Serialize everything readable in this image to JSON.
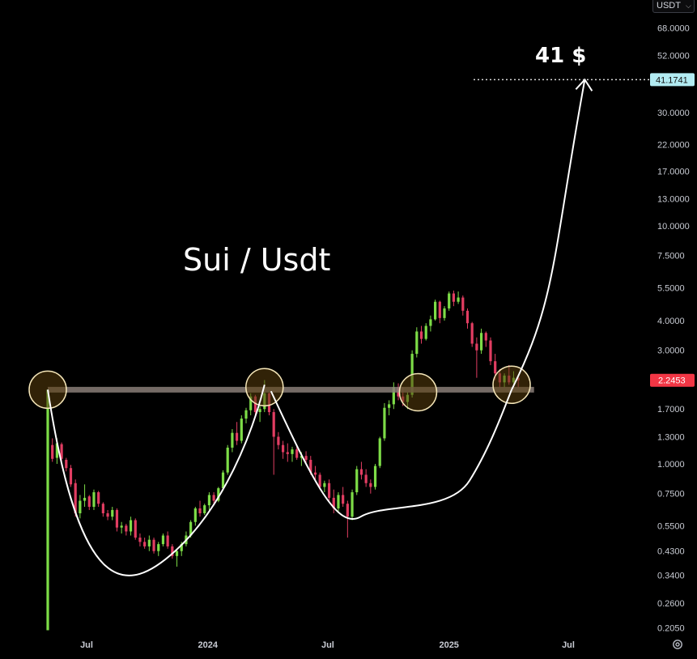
{
  "currency_selector": {
    "label": "USDT",
    "chevron_icon": "chevron-down-icon"
  },
  "settings_icon": "gear-icon",
  "chart_data": {
    "type": "candlestick",
    "title": "Sui / Usdt",
    "scale": "log",
    "ylim": [
      0.19,
      72
    ],
    "xlim": [
      "2023-05-03",
      "2025-07-28"
    ],
    "y_ticks": [
      "68.0000",
      "52.0000",
      "41.1741",
      "30.0000",
      "22.0000",
      "17.0000",
      "13.0000",
      "10.0000",
      "7.5000",
      "5.5000",
      "4.0000",
      "3.0000",
      "2.2453",
      "1.7000",
      "1.3000",
      "1.0000",
      "0.7500",
      "0.5500",
      "0.4300",
      "0.3400",
      "0.2600",
      "0.2050"
    ],
    "x_ticks": [
      {
        "date": "2023-07-01",
        "label": "Jul"
      },
      {
        "date": "2024-01-01",
        "label": "2024"
      },
      {
        "date": "2024-07-01",
        "label": "Jul"
      },
      {
        "date": "2025-01-01",
        "label": "2025"
      },
      {
        "date": "2025-07-01",
        "label": "Jul"
      }
    ],
    "last_price": {
      "value": 2.2453,
      "label": "2.2453",
      "color": "#f23645"
    },
    "target": {
      "value": 41.1741,
      "label": "41.1741",
      "annotation": "41 $",
      "color": "#b2ebf2"
    },
    "neckline": {
      "value": 2.05,
      "from": "2023-05-03",
      "to": "2025-05-10"
    },
    "highlight_circles": [
      {
        "date": "2023-05-03",
        "price": 2.05
      },
      {
        "date": "2024-03-27",
        "price": 2.1
      },
      {
        "date": "2024-11-15",
        "price": 2.0
      },
      {
        "date": "2025-04-06",
        "price": 2.15
      }
    ],
    "colors": {
      "up": "#7ddc47",
      "down": "#e23d62",
      "neckline": "#8a7e78",
      "circle_fill": "#5a3e0c",
      "circle_stroke": "#f5e6b8",
      "curve": "#ffffff"
    },
    "candles": [
      [
        "2023-05-03",
        0.2,
        2.05,
        0.2,
        2.05
      ],
      [
        "2023-05-10",
        1.2,
        1.28,
        1.02,
        1.05
      ],
      [
        "2023-05-17",
        1.06,
        1.28,
        1.0,
        1.22
      ],
      [
        "2023-05-24",
        1.21,
        1.23,
        1.02,
        1.05
      ],
      [
        "2023-05-31",
        1.04,
        1.06,
        0.93,
        0.96
      ],
      [
        "2023-06-07",
        0.96,
        0.99,
        0.8,
        0.82
      ],
      [
        "2023-06-14",
        0.83,
        0.86,
        0.6,
        0.62
      ],
      [
        "2023-06-21",
        0.62,
        0.74,
        0.59,
        0.7
      ],
      [
        "2023-06-28",
        0.7,
        0.82,
        0.66,
        0.72
      ],
      [
        "2023-07-05",
        0.73,
        0.74,
        0.64,
        0.66
      ],
      [
        "2023-07-12",
        0.66,
        0.78,
        0.64,
        0.76
      ],
      [
        "2023-07-19",
        0.76,
        0.77,
        0.66,
        0.68
      ],
      [
        "2023-07-26",
        0.68,
        0.69,
        0.6,
        0.62
      ],
      [
        "2023-08-02",
        0.62,
        0.64,
        0.58,
        0.6
      ],
      [
        "2023-08-09",
        0.6,
        0.66,
        0.58,
        0.64
      ],
      [
        "2023-08-16",
        0.64,
        0.65,
        0.52,
        0.54
      ],
      [
        "2023-08-23",
        0.54,
        0.57,
        0.51,
        0.55
      ],
      [
        "2023-08-30",
        0.55,
        0.56,
        0.5,
        0.52
      ],
      [
        "2023-09-06",
        0.52,
        0.6,
        0.5,
        0.58
      ],
      [
        "2023-09-13",
        0.58,
        0.59,
        0.48,
        0.49
      ],
      [
        "2023-09-20",
        0.49,
        0.51,
        0.45,
        0.47
      ],
      [
        "2023-09-27",
        0.47,
        0.49,
        0.44,
        0.45
      ],
      [
        "2023-10-04",
        0.45,
        0.5,
        0.43,
        0.48
      ],
      [
        "2023-10-11",
        0.48,
        0.49,
        0.42,
        0.43
      ],
      [
        "2023-10-18",
        0.43,
        0.47,
        0.41,
        0.46
      ],
      [
        "2023-10-25",
        0.46,
        0.51,
        0.45,
        0.5
      ],
      [
        "2023-11-01",
        0.5,
        0.52,
        0.44,
        0.45
      ],
      [
        "2023-11-08",
        0.45,
        0.46,
        0.4,
        0.41
      ],
      [
        "2023-11-15",
        0.41,
        0.44,
        0.37,
        0.43
      ],
      [
        "2023-11-22",
        0.43,
        0.47,
        0.41,
        0.46
      ],
      [
        "2023-11-29",
        0.46,
        0.52,
        0.45,
        0.5
      ],
      [
        "2023-12-06",
        0.5,
        0.58,
        0.49,
        0.57
      ],
      [
        "2023-12-13",
        0.57,
        0.66,
        0.55,
        0.65
      ],
      [
        "2023-12-20",
        0.65,
        0.7,
        0.6,
        0.62
      ],
      [
        "2023-12-27",
        0.62,
        0.68,
        0.61,
        0.67
      ],
      [
        "2024-01-03",
        0.67,
        0.76,
        0.64,
        0.74
      ],
      [
        "2024-01-10",
        0.74,
        0.76,
        0.68,
        0.7
      ],
      [
        "2024-01-17",
        0.7,
        0.8,
        0.69,
        0.79
      ],
      [
        "2024-01-24",
        0.79,
        0.94,
        0.77,
        0.92
      ],
      [
        "2024-01-31",
        0.92,
        1.2,
        0.9,
        1.17
      ],
      [
        "2024-02-07",
        1.17,
        1.4,
        1.12,
        1.35
      ],
      [
        "2024-02-14",
        1.35,
        1.5,
        1.2,
        1.25
      ],
      [
        "2024-02-21",
        1.25,
        1.6,
        1.22,
        1.55
      ],
      [
        "2024-02-28",
        1.55,
        1.72,
        1.48,
        1.68
      ],
      [
        "2024-03-06",
        1.68,
        1.98,
        1.6,
        1.92
      ],
      [
        "2024-03-13",
        1.92,
        1.95,
        1.6,
        1.65
      ],
      [
        "2024-03-20",
        1.65,
        1.75,
        1.5,
        1.7
      ],
      [
        "2024-03-27",
        1.7,
        2.25,
        1.65,
        1.98
      ],
      [
        "2024-04-03",
        1.98,
        2.0,
        1.6,
        1.65
      ],
      [
        "2024-04-10",
        1.65,
        1.7,
        0.9,
        1.3
      ],
      [
        "2024-04-17",
        1.3,
        1.36,
        1.15,
        1.2
      ],
      [
        "2024-04-24",
        1.2,
        1.25,
        1.05,
        1.12
      ],
      [
        "2024-05-01",
        1.12,
        1.22,
        1.02,
        1.1
      ],
      [
        "2024-05-08",
        1.1,
        1.18,
        1.02,
        1.15
      ],
      [
        "2024-05-15",
        1.15,
        1.2,
        1.04,
        1.06
      ],
      [
        "2024-05-22",
        1.06,
        1.12,
        0.98,
        1.08
      ],
      [
        "2024-05-29",
        1.08,
        1.13,
        1.0,
        1.04
      ],
      [
        "2024-06-05",
        1.04,
        1.08,
        0.9,
        0.92
      ],
      [
        "2024-06-12",
        0.92,
        0.98,
        0.86,
        0.9
      ],
      [
        "2024-06-19",
        0.9,
        0.92,
        0.78,
        0.8
      ],
      [
        "2024-06-26",
        0.8,
        0.85,
        0.76,
        0.83
      ],
      [
        "2024-07-03",
        0.83,
        0.86,
        0.7,
        0.72
      ],
      [
        "2024-07-10",
        0.72,
        0.78,
        0.62,
        0.65
      ],
      [
        "2024-07-17",
        0.65,
        0.76,
        0.62,
        0.74
      ],
      [
        "2024-07-24",
        0.74,
        0.8,
        0.66,
        0.68
      ],
      [
        "2024-07-31",
        0.68,
        0.7,
        0.49,
        0.6
      ],
      [
        "2024-08-07",
        0.6,
        0.78,
        0.58,
        0.76
      ],
      [
        "2024-08-14",
        0.76,
        0.98,
        0.74,
        0.95
      ],
      [
        "2024-08-21",
        0.95,
        1.02,
        0.86,
        0.9
      ],
      [
        "2024-08-28",
        0.9,
        0.95,
        0.8,
        0.83
      ],
      [
        "2024-09-04",
        0.83,
        0.86,
        0.75,
        0.8
      ],
      [
        "2024-09-11",
        0.8,
        1.0,
        0.78,
        0.98
      ],
      [
        "2024-09-18",
        0.98,
        1.3,
        0.96,
        1.28
      ],
      [
        "2024-09-25",
        1.28,
        1.8,
        1.25,
        1.72
      ],
      [
        "2024-10-02",
        1.72,
        1.85,
        1.6,
        1.78
      ],
      [
        "2024-10-09",
        1.78,
        2.2,
        1.7,
        2.1
      ],
      [
        "2024-10-16",
        2.1,
        2.18,
        1.85,
        1.92
      ],
      [
        "2024-10-23",
        1.92,
        2.1,
        1.75,
        1.82
      ],
      [
        "2024-10-30",
        1.82,
        2.0,
        1.7,
        1.95
      ],
      [
        "2024-11-06",
        1.95,
        3.0,
        1.9,
        2.9
      ],
      [
        "2024-11-13",
        2.9,
        3.75,
        2.8,
        3.6
      ],
      [
        "2024-11-20",
        3.6,
        3.8,
        3.2,
        3.35
      ],
      [
        "2024-11-27",
        3.35,
        3.9,
        3.3,
        3.8
      ],
      [
        "2024-12-04",
        3.8,
        4.2,
        3.6,
        4.05
      ],
      [
        "2024-12-11",
        4.05,
        4.9,
        4.0,
        4.8
      ],
      [
        "2024-12-18",
        4.8,
        4.85,
        3.9,
        4.1
      ],
      [
        "2024-12-25",
        4.1,
        4.6,
        4.0,
        4.5
      ],
      [
        "2025-01-01",
        4.5,
        5.3,
        4.4,
        5.2
      ],
      [
        "2025-01-08",
        5.2,
        5.35,
        4.6,
        4.8
      ],
      [
        "2025-01-15",
        4.8,
        5.3,
        4.7,
        5.0
      ],
      [
        "2025-01-22",
        5.0,
        5.1,
        4.2,
        4.4
      ],
      [
        "2025-01-29",
        4.4,
        4.5,
        3.7,
        3.9
      ],
      [
        "2025-02-05",
        3.9,
        3.95,
        3.1,
        3.2
      ],
      [
        "2025-02-12",
        3.2,
        3.4,
        2.3,
        3.0
      ],
      [
        "2025-02-19",
        3.0,
        3.7,
        2.9,
        3.55
      ],
      [
        "2025-02-26",
        3.55,
        3.6,
        3.1,
        3.3
      ],
      [
        "2025-03-05",
        3.3,
        3.4,
        2.6,
        2.7
      ],
      [
        "2025-03-12",
        2.7,
        2.9,
        2.25,
        2.4
      ],
      [
        "2025-03-19",
        2.4,
        2.5,
        2.1,
        2.2
      ],
      [
        "2025-03-26",
        2.2,
        2.4,
        2.1,
        2.35
      ],
      [
        "2025-04-02",
        2.35,
        2.6,
        2.15,
        2.2
      ],
      [
        "2025-04-09",
        2.2,
        2.45,
        2.1,
        2.3
      ],
      [
        "2025-04-16",
        2.3,
        2.35,
        2.1,
        2.2453
      ]
    ]
  }
}
